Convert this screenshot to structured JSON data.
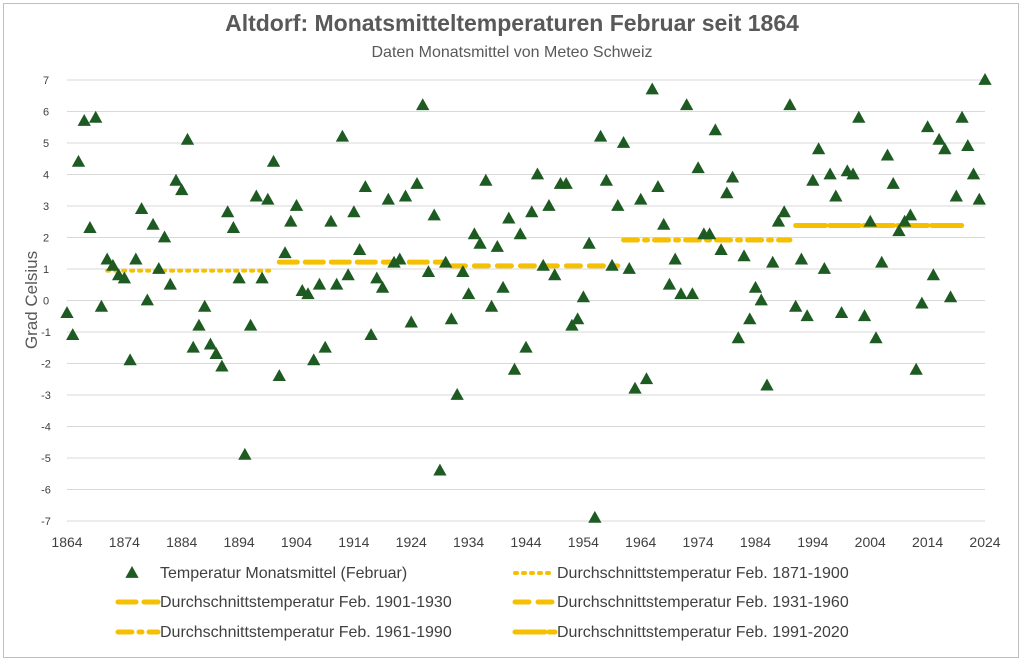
{
  "colors": {
    "marker": "#1e5b22",
    "mean_line": "#f5c000",
    "grid": "#d9d9d9"
  },
  "chart_data": {
    "type": "scatter",
    "title": "Altdorf: Monatsmitteltemperaturen Februar seit 1864",
    "subtitle": "Daten Monatsmittel von Meteo Schweiz",
    "xlabel": "",
    "ylabel": "Grad Celsius",
    "xlim": [
      1864,
      2024
    ],
    "ylim": [
      -7,
      7
    ],
    "x_ticks": [
      "1864",
      "1874",
      "1884",
      "1894",
      "1904",
      "1914",
      "1924",
      "1934",
      "1944",
      "1954",
      "1964",
      "1974",
      "1984",
      "1994",
      "2004",
      "2014",
      "2024"
    ],
    "y_ticks": [
      "7",
      "6",
      "5",
      "4",
      "3",
      "2",
      "1",
      "0",
      "-1",
      "-2",
      "-3",
      "-4",
      "-5",
      "-6",
      "-7"
    ],
    "grid": "horizontal",
    "legend_position": "bottom",
    "series": [
      {
        "name": "Temperatur Monatsmittel (Februar)",
        "marker": "triangle",
        "x": [
          1864,
          1865,
          1866,
          1867,
          1868,
          1869,
          1870,
          1871,
          1872,
          1873,
          1874,
          1875,
          1876,
          1877,
          1878,
          1879,
          1880,
          1881,
          1882,
          1883,
          1884,
          1885,
          1886,
          1887,
          1888,
          1889,
          1890,
          1891,
          1892,
          1893,
          1894,
          1895,
          1896,
          1897,
          1898,
          1899,
          1900,
          1901,
          1902,
          1903,
          1904,
          1905,
          1906,
          1907,
          1908,
          1909,
          1910,
          1911,
          1912,
          1913,
          1914,
          1915,
          1916,
          1917,
          1918,
          1919,
          1920,
          1921,
          1922,
          1923,
          1924,
          1925,
          1926,
          1927,
          1928,
          1929,
          1930,
          1931,
          1932,
          1933,
          1934,
          1935,
          1936,
          1937,
          1938,
          1939,
          1940,
          1941,
          1942,
          1943,
          1944,
          1945,
          1946,
          1947,
          1948,
          1949,
          1950,
          1951,
          1952,
          1953,
          1954,
          1955,
          1956,
          1957,
          1958,
          1959,
          1960,
          1961,
          1962,
          1963,
          1964,
          1965,
          1966,
          1967,
          1968,
          1969,
          1970,
          1971,
          1972,
          1973,
          1974,
          1975,
          1976,
          1977,
          1978,
          1979,
          1980,
          1981,
          1982,
          1983,
          1984,
          1985,
          1986,
          1987,
          1988,
          1989,
          1990,
          1991,
          1992,
          1993,
          1994,
          1995,
          1996,
          1997,
          1998,
          1999,
          2000,
          2001,
          2002,
          2003,
          2004,
          2005,
          2006,
          2007,
          2008,
          2009,
          2010,
          2011,
          2012,
          2013,
          2014,
          2015,
          2016,
          2017,
          2018,
          2019,
          2020,
          2021,
          2022,
          2023,
          2024
        ],
        "y": [
          -0.4,
          -1.1,
          4.4,
          5.7,
          2.3,
          5.8,
          -0.2,
          1.3,
          1.1,
          0.8,
          0.7,
          -1.9,
          1.3,
          2.9,
          0.0,
          2.4,
          1.0,
          2.0,
          0.5,
          3.8,
          3.5,
          5.1,
          -1.5,
          -0.8,
          -0.2,
          -1.4,
          -1.7,
          -2.1,
          2.8,
          2.3,
          0.7,
          -4.9,
          -0.8,
          3.3,
          0.7,
          3.2,
          4.4,
          -2.4,
          1.5,
          2.5,
          3.0,
          0.3,
          0.2,
          -1.9,
          0.5,
          -1.5,
          2.5,
          0.5,
          5.2,
          0.8,
          2.8,
          1.6,
          3.6,
          -1.1,
          0.7,
          0.4,
          3.2,
          1.2,
          1.3,
          3.3,
          -0.7,
          3.7,
          6.2,
          0.9,
          2.7,
          -5.4,
          1.2,
          -0.6,
          -3.0,
          0.9,
          0.2,
          2.1,
          1.8,
          3.8,
          -0.2,
          1.7,
          0.4,
          2.6,
          -2.2,
          2.1,
          -1.5,
          2.8,
          4.0,
          1.1,
          3.0,
          0.8,
          3.7,
          3.7,
          -0.8,
          -0.6,
          0.1,
          1.8,
          -6.9,
          5.2,
          3.8,
          1.1,
          3.0,
          5.0,
          1.0,
          -2.8,
          3.2,
          -2.5,
          6.7,
          3.6,
          2.4,
          0.5,
          1.3,
          0.2,
          6.2,
          0.2,
          4.2,
          2.1,
          2.1,
          5.4,
          1.6,
          3.4,
          3.9,
          -1.2,
          1.4,
          -0.6,
          0.4,
          0.0,
          -2.7,
          1.2,
          2.5,
          2.8,
          6.2,
          -0.2,
          1.3,
          -0.5,
          3.8,
          4.8,
          1.0,
          4.0,
          3.3,
          -0.4,
          4.1,
          4.0,
          5.8,
          -0.5,
          2.5,
          -1.2,
          1.2,
          4.6,
          3.7,
          2.2,
          2.5,
          2.7,
          -2.2,
          -0.1,
          5.5,
          0.8,
          5.1,
          4.8,
          0.1,
          3.3,
          5.8,
          4.9,
          4.0,
          3.2,
          7.0
        ]
      },
      {
        "name": "Durchschnittstemperatur Feb. 1871-1900",
        "x": [
          1871,
          1900
        ],
        "y": [
          0.95,
          0.95
        ],
        "dash": "dotted"
      },
      {
        "name": "Durchschnittstemperatur Feb. 1901-1930",
        "x": [
          1901,
          1930
        ],
        "y": [
          1.22,
          1.22
        ],
        "dash": "long-dash"
      },
      {
        "name": "Durchschnittstemperatur Feb. 1931-1960",
        "x": [
          1931,
          1960
        ],
        "y": [
          1.1,
          1.1
        ],
        "dash": "dash"
      },
      {
        "name": "Durchschnittstemperatur Feb. 1961-1990",
        "x": [
          1961,
          1990
        ],
        "y": [
          1.92,
          1.92
        ],
        "dash": "dash-dot"
      },
      {
        "name": "Durchschnittstemperatur Feb. 1991-2020",
        "x": [
          1991,
          2020
        ],
        "y": [
          2.38,
          2.38
        ],
        "dash": "solid"
      }
    ]
  }
}
